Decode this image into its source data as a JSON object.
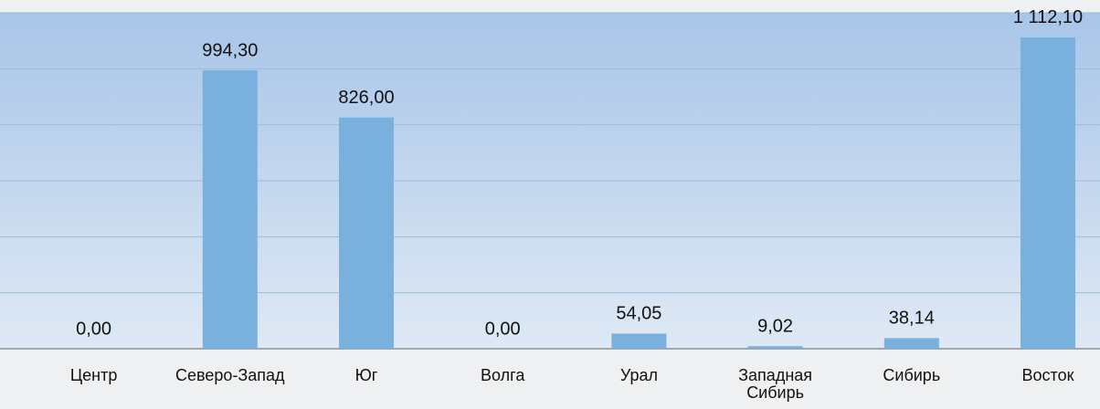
{
  "chart_data": {
    "type": "bar",
    "categories": [
      "Центр",
      "Северо-Запад",
      "Юг",
      "Волга",
      "Урал",
      "Западная Сибирь",
      "Сибирь",
      "Восток"
    ],
    "values": [
      0,
      994.3,
      826,
      0,
      54.05,
      9.02,
      38.14,
      1112.1
    ],
    "value_labels": [
      "0,00",
      "994,30",
      "826,00",
      "0,00",
      "54,05",
      "9,02",
      "38,14",
      "1 112,10"
    ],
    "color": "#7ab0de",
    "ylim": [
      0,
      1200
    ],
    "yticks": [
      0,
      200,
      400,
      600,
      800,
      1000,
      1200
    ],
    "grid": true
  }
}
